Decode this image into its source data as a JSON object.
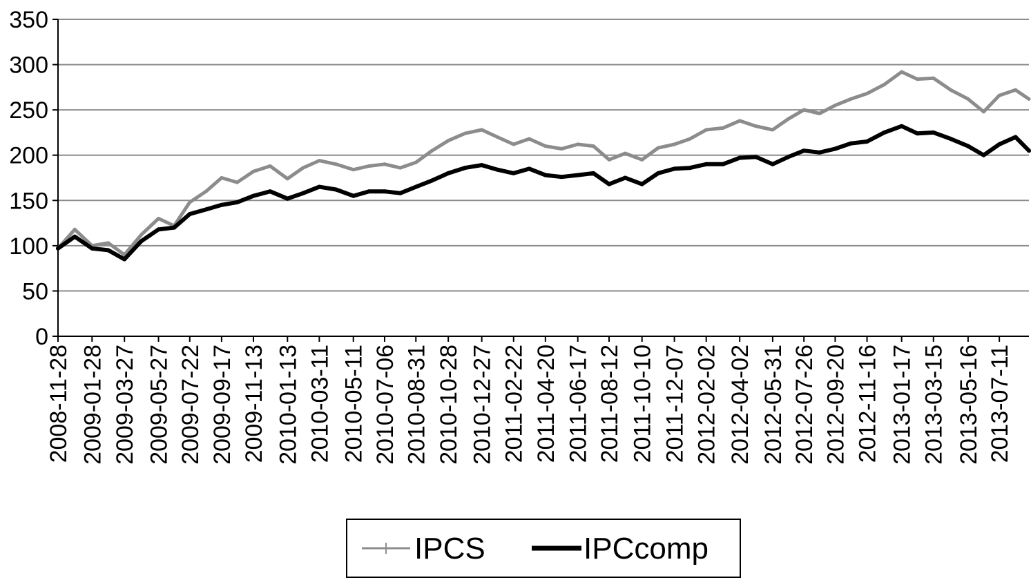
{
  "chart_data": {
    "type": "line",
    "title": "",
    "xlabel": "",
    "ylabel": "",
    "ylim": [
      0,
      350
    ],
    "yticks": [
      0,
      50,
      100,
      150,
      200,
      250,
      300,
      350
    ],
    "grid": "horizontal",
    "legend": "bottom",
    "x_tick_labels": [
      "2008-11-28",
      "2009-01-28",
      "2009-03-27",
      "2009-05-27",
      "2009-07-22",
      "2009-09-17",
      "2009-11-13",
      "2010-01-13",
      "2010-03-11",
      "2010-05-11",
      "2010-07-06",
      "2010-08-31",
      "2010-10-28",
      "2010-12-27",
      "2011-02-22",
      "2011-04-20",
      "2011-06-17",
      "2011-08-12",
      "2011-10-10",
      "2011-12-07",
      "2012-02-02",
      "2012-04-02",
      "2012-05-31",
      "2012-07-26",
      "2012-09-20",
      "2012-11-16",
      "2013-01-17",
      "2013-03-15",
      "2013-05-16",
      "2013-07-11"
    ],
    "x": [
      "2008-11-28",
      "2008-12-28",
      "2009-01-28",
      "2009-02-26",
      "2009-03-27",
      "2009-04-26",
      "2009-05-27",
      "2009-06-24",
      "2009-07-22",
      "2009-08-20",
      "2009-09-17",
      "2009-10-15",
      "2009-11-13",
      "2009-12-13",
      "2010-01-13",
      "2010-02-10",
      "2010-03-11",
      "2010-04-10",
      "2010-05-11",
      "2010-06-08",
      "2010-07-06",
      "2010-08-03",
      "2010-08-31",
      "2010-09-29",
      "2010-10-28",
      "2010-11-27",
      "2010-12-27",
      "2011-01-24",
      "2011-02-22",
      "2011-03-22",
      "2011-04-20",
      "2011-05-19",
      "2011-06-17",
      "2011-07-15",
      "2011-08-12",
      "2011-09-10",
      "2011-10-10",
      "2011-11-08",
      "2011-12-07",
      "2012-01-04",
      "2012-02-02",
      "2012-03-03",
      "2012-04-02",
      "2012-05-01",
      "2012-05-31",
      "2012-06-28",
      "2012-07-26",
      "2012-08-23",
      "2012-09-20",
      "2012-10-18",
      "2012-11-16",
      "2012-12-17",
      "2013-01-17",
      "2013-02-14",
      "2013-03-15",
      "2013-04-15",
      "2013-05-16",
      "2013-06-13",
      "2013-07-11",
      "2013-08-09",
      "2013-09-02"
    ],
    "series": [
      {
        "name": "IPCS",
        "color": "#8c8c8c",
        "values": [
          97,
          118,
          100,
          103,
          90,
          112,
          130,
          122,
          148,
          160,
          175,
          170,
          182,
          188,
          174,
          186,
          194,
          190,
          184,
          188,
          190,
          186,
          192,
          205,
          216,
          224,
          228,
          220,
          212,
          218,
          210,
          207,
          212,
          210,
          195,
          202,
          195,
          208,
          212,
          218,
          228,
          230,
          238,
          232,
          228,
          240,
          250,
          246,
          255,
          262,
          268,
          278,
          292,
          284,
          285,
          272,
          262,
          248,
          266,
          272,
          262
        ]
      },
      {
        "name": "IPCcomp",
        "color": "#000000",
        "values": [
          97,
          110,
          97,
          95,
          85,
          105,
          118,
          120,
          135,
          140,
          145,
          148,
          155,
          160,
          152,
          158,
          165,
          162,
          155,
          160,
          160,
          158,
          165,
          172,
          180,
          186,
          189,
          184,
          180,
          185,
          178,
          176,
          178,
          180,
          168,
          175,
          168,
          180,
          185,
          186,
          190,
          190,
          197,
          198,
          190,
          198,
          205,
          203,
          207,
          213,
          215,
          225,
          232,
          224,
          225,
          218,
          210,
          200,
          212,
          220,
          205
        ]
      }
    ]
  }
}
